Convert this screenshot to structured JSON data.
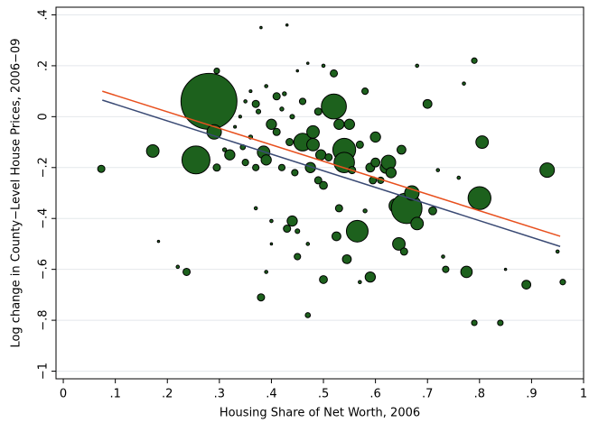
{
  "chart_data": {
    "type": "scatter",
    "xlabel": "Housing Share of Net Worth, 2006",
    "ylabel": "Log change in County−Level House Prices, 2006−09",
    "xlim": [
      -0.014,
      1.0
    ],
    "ylim": [
      -1.03,
      0.43
    ],
    "xticks": [
      {
        "value": 0,
        "label": "0"
      },
      {
        "value": 0.1,
        "label": ".1"
      },
      {
        "value": 0.2,
        "label": ".2"
      },
      {
        "value": 0.3,
        "label": ".3"
      },
      {
        "value": 0.4,
        "label": ".4"
      },
      {
        "value": 0.5,
        "label": ".5"
      },
      {
        "value": 0.6,
        "label": ".6"
      },
      {
        "value": 0.7,
        "label": ".7"
      },
      {
        "value": 0.8,
        "label": ".8"
      },
      {
        "value": 0.9,
        "label": ".9"
      },
      {
        "value": 1,
        "label": "1"
      }
    ],
    "yticks": [
      {
        "value": -1,
        "label": "−1"
      },
      {
        "value": -0.8,
        "label": "−.8"
      },
      {
        "value": -0.6,
        "label": "−.6"
      },
      {
        "value": -0.4,
        "label": "−.4"
      },
      {
        "value": -0.2,
        "label": "−.2"
      },
      {
        "value": 0,
        "label": "0"
      },
      {
        "value": 0.2,
        "label": ".2"
      },
      {
        "value": 0.4,
        "label": ".4"
      }
    ],
    "grid": true,
    "points": {
      "color": "#1d611d",
      "x": [
        0.073,
        0.172,
        0.183,
        0.22,
        0.237,
        0.28,
        0.255,
        0.29,
        0.295,
        0.295,
        0.31,
        0.32,
        0.345,
        0.35,
        0.37,
        0.37,
        0.37,
        0.38,
        0.38,
        0.385,
        0.39,
        0.39,
        0.4,
        0.4,
        0.4,
        0.41,
        0.41,
        0.42,
        0.43,
        0.43,
        0.435,
        0.44,
        0.445,
        0.45,
        0.45,
        0.46,
        0.46,
        0.47,
        0.47,
        0.475,
        0.48,
        0.48,
        0.49,
        0.49,
        0.495,
        0.5,
        0.5,
        0.5,
        0.51,
        0.52,
        0.52,
        0.525,
        0.53,
        0.53,
        0.54,
        0.54,
        0.545,
        0.55,
        0.555,
        0.565,
        0.57,
        0.57,
        0.58,
        0.58,
        0.59,
        0.59,
        0.595,
        0.6,
        0.6,
        0.61,
        0.62,
        0.625,
        0.63,
        0.64,
        0.645,
        0.65,
        0.655,
        0.66,
        0.67,
        0.68,
        0.68,
        0.7,
        0.71,
        0.72,
        0.73,
        0.735,
        0.76,
        0.77,
        0.775,
        0.79,
        0.79,
        0.8,
        0.805,
        0.84,
        0.85,
        0.89,
        0.93,
        0.95,
        0.96,
        0.34,
        0.35,
        0.36,
        0.375,
        0.39,
        0.42,
        0.425,
        0.44,
        0.36,
        0.33,
        0.45,
        0.47
      ],
      "values": [
        -0.205,
        -0.135,
        -0.49,
        -0.59,
        -0.61,
        0.06,
        -0.17,
        -0.06,
        0.18,
        -0.2,
        -0.13,
        -0.15,
        -0.12,
        -0.18,
        -0.2,
        -0.36,
        0.05,
        -0.71,
        0.35,
        -0.14,
        -0.17,
        -0.61,
        -0.41,
        -0.5,
        -0.03,
        0.08,
        -0.06,
        -0.2,
        0.36,
        -0.44,
        -0.1,
        -0.41,
        -0.22,
        -0.45,
        -0.55,
        0.06,
        -0.1,
        -0.78,
        -0.5,
        -0.2,
        -0.11,
        -0.06,
        -0.25,
        0.02,
        -0.15,
        -0.64,
        0.2,
        -0.27,
        -0.16,
        0.04,
        0.17,
        -0.47,
        -0.36,
        -0.03,
        -0.13,
        -0.18,
        -0.56,
        -0.03,
        -0.21,
        -0.45,
        -0.65,
        -0.11,
        -0.37,
        0.1,
        -0.63,
        -0.2,
        -0.25,
        -0.18,
        -0.08,
        -0.25,
        -0.2,
        -0.18,
        -0.22,
        -0.35,
        -0.5,
        -0.13,
        -0.53,
        -0.36,
        -0.3,
        -0.42,
        0.2,
        0.05,
        -0.37,
        -0.21,
        -0.55,
        -0.6,
        -0.24,
        0.13,
        -0.61,
        0.22,
        -0.81,
        -0.32,
        -0.1,
        -0.81,
        -0.6,
        -0.66,
        -0.21,
        -0.53,
        -0.65,
        0.0,
        0.06,
        0.1,
        0.02,
        0.12,
        0.03,
        0.09,
        0.0,
        -0.08,
        -0.04,
        0.18,
        0.21
      ],
      "sizes": [
        1,
        3,
        0.1,
        0.2,
        1,
        60,
        15,
        4,
        0.6,
        1,
        0.3,
        2,
        0.5,
        0.8,
        0.8,
        0.2,
        1,
        1,
        0.1,
        3,
        2,
        0.2,
        0.2,
        0.1,
        2,
        1,
        1,
        0.8,
        0.1,
        1,
        1,
        2,
        0.8,
        0.4,
        0.8,
        0.8,
        6,
        0.5,
        0.2,
        2,
        3,
        3,
        1,
        1,
        2,
        1.2,
        0.2,
        1.2,
        1,
        12,
        1,
        1.5,
        1,
        2,
        10,
        8,
        1.5,
        2,
        1,
        9,
        0.2,
        1,
        0.3,
        0.8,
        2,
        1.5,
        1,
        1.5,
        2,
        0.8,
        2.5,
        4,
        2,
        4,
        3,
        1.5,
        1,
        18,
        4,
        3,
        0.2,
        1.5,
        1.2,
        0.2,
        0.2,
        0.8,
        0.2,
        0.2,
        2.5,
        0.6,
        0.6,
        10,
        3,
        0.6,
        0.1,
        1.5,
        4,
        0.2,
        0.6,
        0.15,
        0.2,
        0.15,
        0.4,
        0.2,
        0.3,
        0.3,
        0.4,
        0.3,
        0.15,
        0.1,
        0.1
      ]
    },
    "fit_lines": [
      {
        "color": "#e8501e",
        "x": [
          0.075,
          0.955
        ],
        "values": [
          0.1,
          -0.47
        ]
      },
      {
        "color": "#3a4a74",
        "x": [
          0.075,
          0.955
        ],
        "values": [
          0.065,
          -0.51
        ]
      }
    ]
  }
}
